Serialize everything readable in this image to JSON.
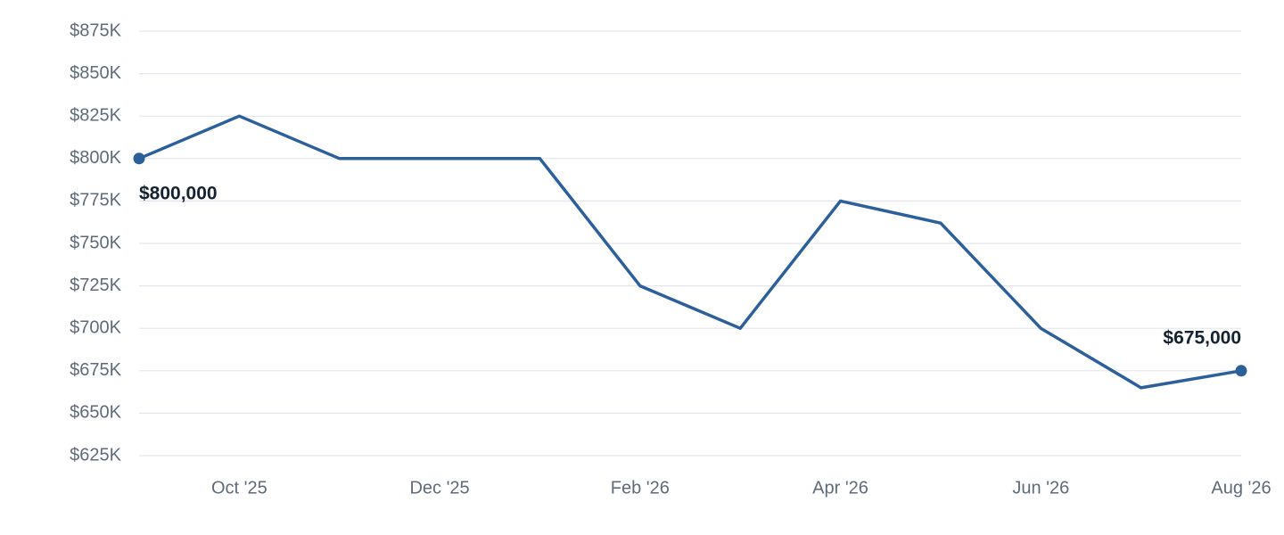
{
  "chart_data": {
    "type": "line",
    "categories": [
      null,
      "Oct '25",
      null,
      "Dec '25",
      null,
      "Feb '26",
      null,
      "Apr '26",
      null,
      "Jun '26",
      null,
      "Aug '26"
    ],
    "series": [
      {
        "color": "#2d5f9a",
        "values": [
          800000,
          825000,
          800000,
          800000,
          800000,
          725000,
          700000,
          775000,
          762000,
          700000,
          665000,
          675000
        ],
        "value_labels": [
          "$800,000",
          null,
          null,
          null,
          null,
          null,
          null,
          null,
          null,
          null,
          null,
          "$675,000"
        ]
      }
    ],
    "ylim": [
      625000,
      875000
    ],
    "yticks": [
      {
        "value": 625000,
        "label": "$625K"
      },
      {
        "value": 650000,
        "label": "$650K"
      },
      {
        "value": 675000,
        "label": "$675K"
      },
      {
        "value": 700000,
        "label": "$700K"
      },
      {
        "value": 725000,
        "label": "$725K"
      },
      {
        "value": 750000,
        "label": "$750K"
      },
      {
        "value": 775000,
        "label": "$775K"
      },
      {
        "value": 800000,
        "label": "$800K"
      },
      {
        "value": 825000,
        "label": "$825K"
      },
      {
        "value": 850000,
        "label": "$850K"
      },
      {
        "value": 875000,
        "label": "$875K"
      }
    ],
    "grid": true
  }
}
